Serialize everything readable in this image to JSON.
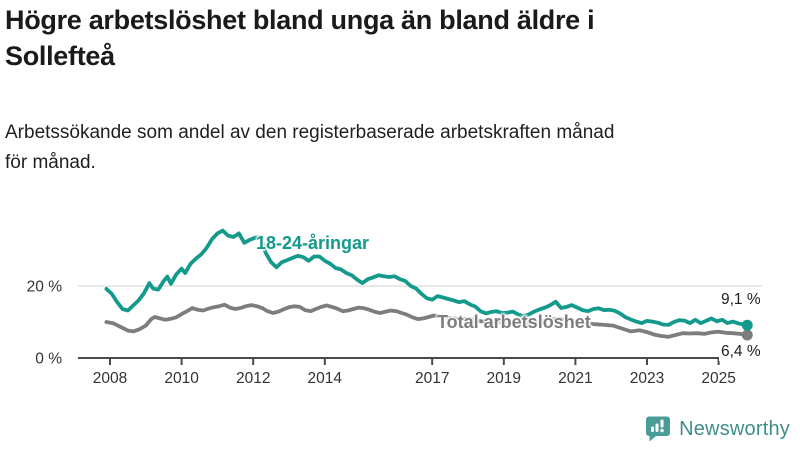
{
  "header": {
    "title_lines": [
      "Högre arbetslöshet bland unga än bland äldre i",
      "Sollefteå"
    ],
    "subtitle_lines": [
      "Arbetssökande som andel av den registerbaserade arbetskraften månad",
      "för månad."
    ]
  },
  "chart_data": {
    "type": "line",
    "unit": "%",
    "title": "Högre arbetslöshet bland unga än bland äldre i Sollefteå",
    "subtitle": "Arbetssökande som andel av den registerbaserade arbetskraften månad för månad.",
    "x_axis": {
      "tick_years": [
        2008,
        2010,
        2012,
        2014,
        2017,
        2019,
        2021,
        2023,
        2025
      ],
      "range_years": [
        2007.9,
        2026.2
      ]
    },
    "y_axis": {
      "ticks": [
        {
          "value": 0,
          "label": "0 %"
        },
        {
          "value": 20,
          "label": "20 %"
        }
      ],
      "range": [
        0,
        40
      ],
      "gridlines": [
        20
      ]
    },
    "axis_color": "#4a4a4a",
    "gridline_color": "#e0e0e0",
    "series": [
      {
        "id": "youth",
        "label": "18-24-åringar",
        "color": "#149a8c",
        "end_label": "9,1 %",
        "end_value": 9.1,
        "points": [
          [
            2007.9,
            19.2
          ],
          [
            2008.05,
            17.8
          ],
          [
            2008.2,
            15.5
          ],
          [
            2008.35,
            13.6
          ],
          [
            2008.5,
            13.2
          ],
          [
            2008.65,
            14.6
          ],
          [
            2008.8,
            16.0
          ],
          [
            2008.95,
            18.0
          ],
          [
            2009.1,
            20.8
          ],
          [
            2009.2,
            19.3
          ],
          [
            2009.35,
            19.0
          ],
          [
            2009.5,
            21.4
          ],
          [
            2009.6,
            22.6
          ],
          [
            2009.7,
            20.6
          ],
          [
            2009.85,
            23.2
          ],
          [
            2010.0,
            24.8
          ],
          [
            2010.1,
            23.6
          ],
          [
            2010.25,
            26.2
          ],
          [
            2010.4,
            27.6
          ],
          [
            2010.55,
            28.8
          ],
          [
            2010.7,
            30.6
          ],
          [
            2010.85,
            33.0
          ],
          [
            2011.0,
            34.6
          ],
          [
            2011.15,
            35.4
          ],
          [
            2011.3,
            34.0
          ],
          [
            2011.45,
            33.6
          ],
          [
            2011.6,
            34.6
          ],
          [
            2011.75,
            32.0
          ],
          [
            2011.9,
            32.8
          ],
          [
            2012.05,
            33.4
          ],
          [
            2012.2,
            33.6
          ],
          [
            2012.35,
            29.2
          ],
          [
            2012.5,
            26.6
          ],
          [
            2012.65,
            25.2
          ],
          [
            2012.8,
            26.6
          ],
          [
            2012.95,
            27.2
          ],
          [
            2013.1,
            27.8
          ],
          [
            2013.25,
            28.4
          ],
          [
            2013.4,
            28.0
          ],
          [
            2013.55,
            27.0
          ],
          [
            2013.7,
            28.2
          ],
          [
            2013.85,
            28.2
          ],
          [
            2014.0,
            27.0
          ],
          [
            2014.15,
            26.2
          ],
          [
            2014.3,
            25.0
          ],
          [
            2014.45,
            24.6
          ],
          [
            2014.6,
            23.6
          ],
          [
            2014.75,
            23.0
          ],
          [
            2014.9,
            21.8
          ],
          [
            2015.05,
            20.8
          ],
          [
            2015.2,
            21.9
          ],
          [
            2015.35,
            22.4
          ],
          [
            2015.5,
            23.0
          ],
          [
            2015.65,
            22.7
          ],
          [
            2015.8,
            22.5
          ],
          [
            2015.95,
            22.7
          ],
          [
            2016.1,
            21.9
          ],
          [
            2016.25,
            21.4
          ],
          [
            2016.4,
            20.0
          ],
          [
            2016.55,
            19.3
          ],
          [
            2016.7,
            17.8
          ],
          [
            2016.85,
            16.6
          ],
          [
            2017.0,
            16.2
          ],
          [
            2017.15,
            17.2
          ],
          [
            2017.3,
            16.8
          ],
          [
            2017.45,
            16.4
          ],
          [
            2017.6,
            16.0
          ],
          [
            2017.75,
            15.5
          ],
          [
            2017.9,
            15.8
          ],
          [
            2018.05,
            14.9
          ],
          [
            2018.2,
            14.3
          ],
          [
            2018.35,
            13.0
          ],
          [
            2018.5,
            12.4
          ],
          [
            2018.65,
            12.8
          ],
          [
            2018.8,
            13.0
          ],
          [
            2018.95,
            12.5
          ],
          [
            2019.1,
            12.6
          ],
          [
            2019.25,
            12.9
          ],
          [
            2019.4,
            12.1
          ],
          [
            2019.55,
            11.6
          ],
          [
            2019.7,
            12.1
          ],
          [
            2019.85,
            12.9
          ],
          [
            2020.0,
            13.5
          ],
          [
            2020.15,
            14.0
          ],
          [
            2020.3,
            14.7
          ],
          [
            2020.45,
            15.6
          ],
          [
            2020.6,
            13.9
          ],
          [
            2020.75,
            14.2
          ],
          [
            2020.9,
            14.7
          ],
          [
            2021.05,
            14.0
          ],
          [
            2021.2,
            13.3
          ],
          [
            2021.35,
            13.0
          ],
          [
            2021.5,
            13.6
          ],
          [
            2021.65,
            13.8
          ],
          [
            2021.8,
            13.3
          ],
          [
            2021.95,
            13.4
          ],
          [
            2022.1,
            13.1
          ],
          [
            2022.25,
            12.4
          ],
          [
            2022.4,
            11.3
          ],
          [
            2022.55,
            10.7
          ],
          [
            2022.7,
            10.1
          ],
          [
            2022.85,
            9.7
          ],
          [
            2023.0,
            10.3
          ],
          [
            2023.15,
            10.1
          ],
          [
            2023.3,
            9.8
          ],
          [
            2023.45,
            9.3
          ],
          [
            2023.6,
            9.2
          ],
          [
            2023.75,
            10.0
          ],
          [
            2023.9,
            10.5
          ],
          [
            2024.05,
            10.4
          ],
          [
            2024.2,
            9.7
          ],
          [
            2024.35,
            10.6
          ],
          [
            2024.5,
            9.7
          ],
          [
            2024.65,
            10.3
          ],
          [
            2024.8,
            11.0
          ],
          [
            2024.95,
            10.2
          ],
          [
            2025.1,
            10.6
          ],
          [
            2025.25,
            9.7
          ],
          [
            2025.4,
            10.1
          ],
          [
            2025.55,
            9.6
          ],
          [
            2025.7,
            9.3
          ],
          [
            2025.8,
            9.1
          ]
        ]
      },
      {
        "id": "total",
        "label": "Total arbetslöshet",
        "color": "#7d7d7d",
        "end_label": "6,4 %",
        "end_value": 6.4,
        "points": [
          [
            2007.9,
            10.0
          ],
          [
            2008.1,
            9.6
          ],
          [
            2008.3,
            8.6
          ],
          [
            2008.5,
            7.6
          ],
          [
            2008.65,
            7.4
          ],
          [
            2008.8,
            7.9
          ],
          [
            2009.0,
            9.0
          ],
          [
            2009.15,
            10.8
          ],
          [
            2009.25,
            11.4
          ],
          [
            2009.4,
            11.0
          ],
          [
            2009.55,
            10.6
          ],
          [
            2009.7,
            10.9
          ],
          [
            2009.85,
            11.3
          ],
          [
            2010.0,
            12.2
          ],
          [
            2010.15,
            13.0
          ],
          [
            2010.3,
            13.9
          ],
          [
            2010.45,
            13.4
          ],
          [
            2010.6,
            13.2
          ],
          [
            2010.75,
            13.7
          ],
          [
            2010.9,
            14.1
          ],
          [
            2011.05,
            14.4
          ],
          [
            2011.2,
            14.8
          ],
          [
            2011.35,
            14.0
          ],
          [
            2011.5,
            13.6
          ],
          [
            2011.65,
            13.9
          ],
          [
            2011.8,
            14.4
          ],
          [
            2011.95,
            14.7
          ],
          [
            2012.1,
            14.4
          ],
          [
            2012.25,
            13.9
          ],
          [
            2012.4,
            13.0
          ],
          [
            2012.55,
            12.5
          ],
          [
            2012.7,
            12.9
          ],
          [
            2012.85,
            13.5
          ],
          [
            2013.0,
            14.1
          ],
          [
            2013.15,
            14.4
          ],
          [
            2013.3,
            14.2
          ],
          [
            2013.45,
            13.3
          ],
          [
            2013.6,
            13.0
          ],
          [
            2013.75,
            13.6
          ],
          [
            2013.9,
            14.2
          ],
          [
            2014.05,
            14.6
          ],
          [
            2014.2,
            14.2
          ],
          [
            2014.35,
            13.7
          ],
          [
            2014.5,
            13.0
          ],
          [
            2014.65,
            13.2
          ],
          [
            2014.8,
            13.6
          ],
          [
            2014.95,
            14.0
          ],
          [
            2015.1,
            13.8
          ],
          [
            2015.25,
            13.4
          ],
          [
            2015.4,
            12.8
          ],
          [
            2015.55,
            12.5
          ],
          [
            2015.7,
            12.9
          ],
          [
            2015.85,
            13.2
          ],
          [
            2016.0,
            13.0
          ],
          [
            2016.15,
            12.5
          ],
          [
            2016.3,
            12.0
          ],
          [
            2016.45,
            11.3
          ],
          [
            2016.6,
            10.8
          ],
          [
            2016.75,
            11.0
          ],
          [
            2016.9,
            11.4
          ],
          [
            2017.05,
            11.8
          ],
          [
            2017.3,
            11.4
          ],
          [
            2017.55,
            11.0
          ],
          [
            2017.8,
            10.8
          ],
          [
            2018.05,
            10.9
          ],
          [
            2018.3,
            10.3
          ],
          [
            2018.55,
            9.9
          ],
          [
            2018.8,
            10.0
          ],
          [
            2019.05,
            10.0
          ],
          [
            2019.3,
            9.7
          ],
          [
            2019.55,
            9.4
          ],
          [
            2019.8,
            9.7
          ],
          [
            2020.05,
            10.1
          ],
          [
            2020.3,
            10.7
          ],
          [
            2020.55,
            10.9
          ],
          [
            2020.8,
            10.5
          ],
          [
            2021.05,
            10.1
          ],
          [
            2021.3,
            9.7
          ],
          [
            2021.55,
            9.4
          ],
          [
            2021.8,
            9.2
          ],
          [
            2022.05,
            9.0
          ],
          [
            2022.3,
            8.2
          ],
          [
            2022.55,
            7.4
          ],
          [
            2022.8,
            7.7
          ],
          [
            2023.0,
            7.2
          ],
          [
            2023.2,
            6.5
          ],
          [
            2023.4,
            6.1
          ],
          [
            2023.6,
            5.9
          ],
          [
            2023.8,
            6.4
          ],
          [
            2024.0,
            6.9
          ],
          [
            2024.2,
            6.8
          ],
          [
            2024.4,
            6.9
          ],
          [
            2024.6,
            6.7
          ],
          [
            2024.8,
            7.1
          ],
          [
            2025.0,
            7.3
          ],
          [
            2025.2,
            7.0
          ],
          [
            2025.4,
            6.9
          ],
          [
            2025.6,
            6.7
          ],
          [
            2025.8,
            6.4
          ]
        ]
      }
    ]
  },
  "footer": {
    "brand": "Newsworthy",
    "brand_color": "#3d8e8b",
    "icon_color": "#4a9c99",
    "icon": "bar-chart-speech-bubble"
  }
}
